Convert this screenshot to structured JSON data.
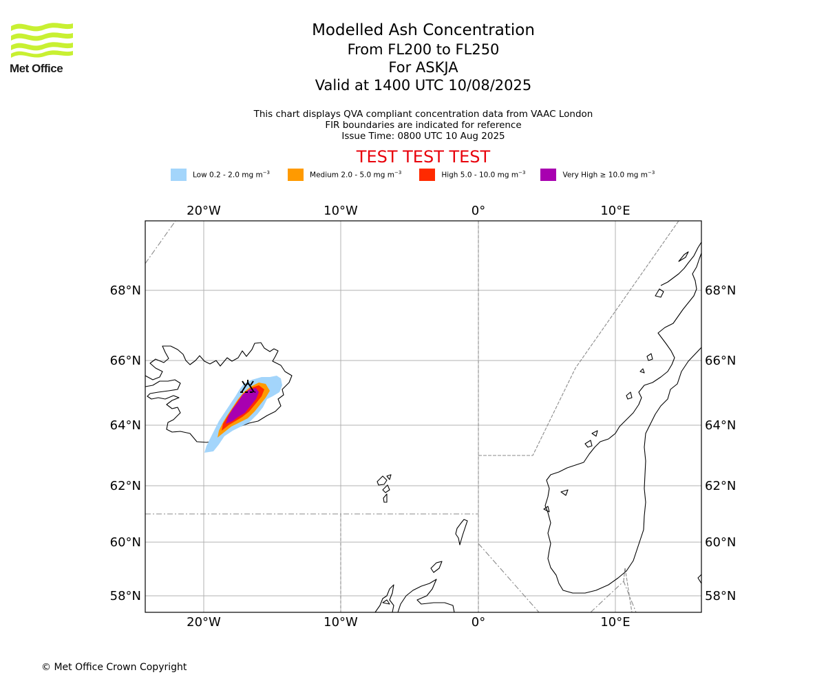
{
  "logo": {
    "text": "Met Office"
  },
  "title": {
    "line1": "Modelled Ash Concentration",
    "line2": "From FL200 to FL250",
    "line3": "For ASKJA",
    "line4": "Valid at 1400 UTC 10/08/2025"
  },
  "subtitle": {
    "line1": "This chart displays QVA compliant concentration data from VAAC London",
    "line2": "FIR boundaries are indicated for reference",
    "line3": "Issue Time: 0800 UTC 10 Aug 2025"
  },
  "test_banner": "TEST TEST TEST",
  "legend": [
    {
      "label": "Low 0.2 - 2.0 mg m",
      "unit_exp": "−3",
      "color": "#a3d5fb"
    },
    {
      "label": "Medium 2.0 - 5.0 mg m",
      "unit_exp": "−3",
      "color": "#ff9a00"
    },
    {
      "label": "High 5.0 - 10.0 mg m",
      "unit_exp": "−3",
      "color": "#ff2a00"
    },
    {
      "label": "Very High  ≥  10.0 mg m",
      "unit_exp": "−3",
      "color": "#a800b0"
    }
  ],
  "axes": {
    "longitude_ticks": [
      "20°W",
      "10°W",
      "0°",
      "10°E"
    ],
    "latitude_ticks": [
      "68°N",
      "66°N",
      "64°N",
      "62°N",
      "60°N",
      "58°N"
    ]
  },
  "volcano": {
    "name": "ASKJA",
    "icon": "volcano-icon"
  },
  "copyright": "© Met Office Crown Copyright"
}
